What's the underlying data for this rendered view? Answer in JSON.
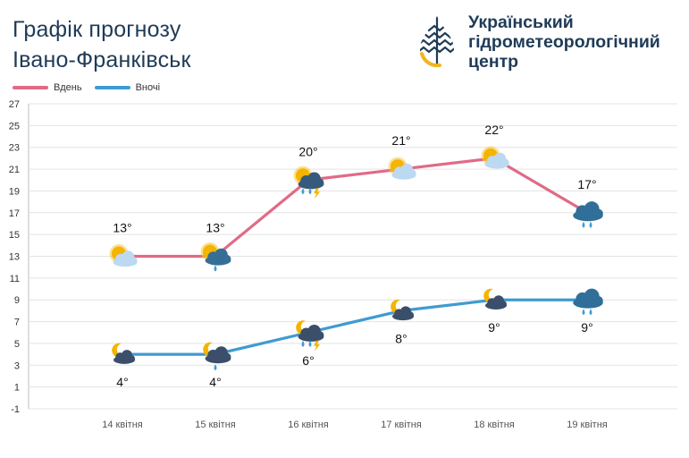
{
  "header": {
    "title_line1": "Графік прогнозу",
    "title_line2": "Івано-Франківськ"
  },
  "logo": {
    "icon": "drop-logo-icon",
    "line1": "Український",
    "line2": "гідрометеорологічний",
    "line3": "центр"
  },
  "colors": {
    "day": "#e06b86",
    "night": "#3f9bd1",
    "title": "#1f3b57"
  },
  "legend": [
    {
      "name": "Вдень",
      "color": "#e06b86"
    },
    {
      "name": "Вночі",
      "color": "#3f9bd1"
    }
  ],
  "chart_data": {
    "type": "line",
    "categories": [
      "14 квітня",
      "15 квітня",
      "16 квітня",
      "17 квітня",
      "18 квітня",
      "19 квітня"
    ],
    "series": [
      {
        "name": "Вдень",
        "values": [
          13,
          13,
          20,
          21,
          22,
          17
        ],
        "labels": [
          "13°",
          "13°",
          "20°",
          "21°",
          "22°",
          "17°"
        ],
        "icons": [
          "sun-cloud-icon",
          "sun-rain-cloud-icon",
          "sun-thunder-cloud-icon",
          "sun-cloud-icon",
          "sun-cloud-icon",
          "rain-cloud-icon"
        ]
      },
      {
        "name": "Вночі",
        "values": [
          4,
          4,
          6,
          8,
          9,
          9
        ],
        "labels": [
          "4°",
          "4°",
          "6°",
          "8°",
          "9°",
          "9°"
        ],
        "icons": [
          "moon-cloud-icon",
          "moon-rain-cloud-icon",
          "moon-thunder-cloud-icon",
          "moon-cloud-icon",
          "moon-cloud-icon",
          "rain-cloud-icon"
        ]
      }
    ],
    "yticks": [
      -1,
      1,
      3,
      5,
      7,
      9,
      11,
      13,
      15,
      17,
      19,
      21,
      23,
      25,
      27
    ],
    "ylim": [
      -1,
      27
    ],
    "grid": true,
    "legend_position": "top-left"
  }
}
